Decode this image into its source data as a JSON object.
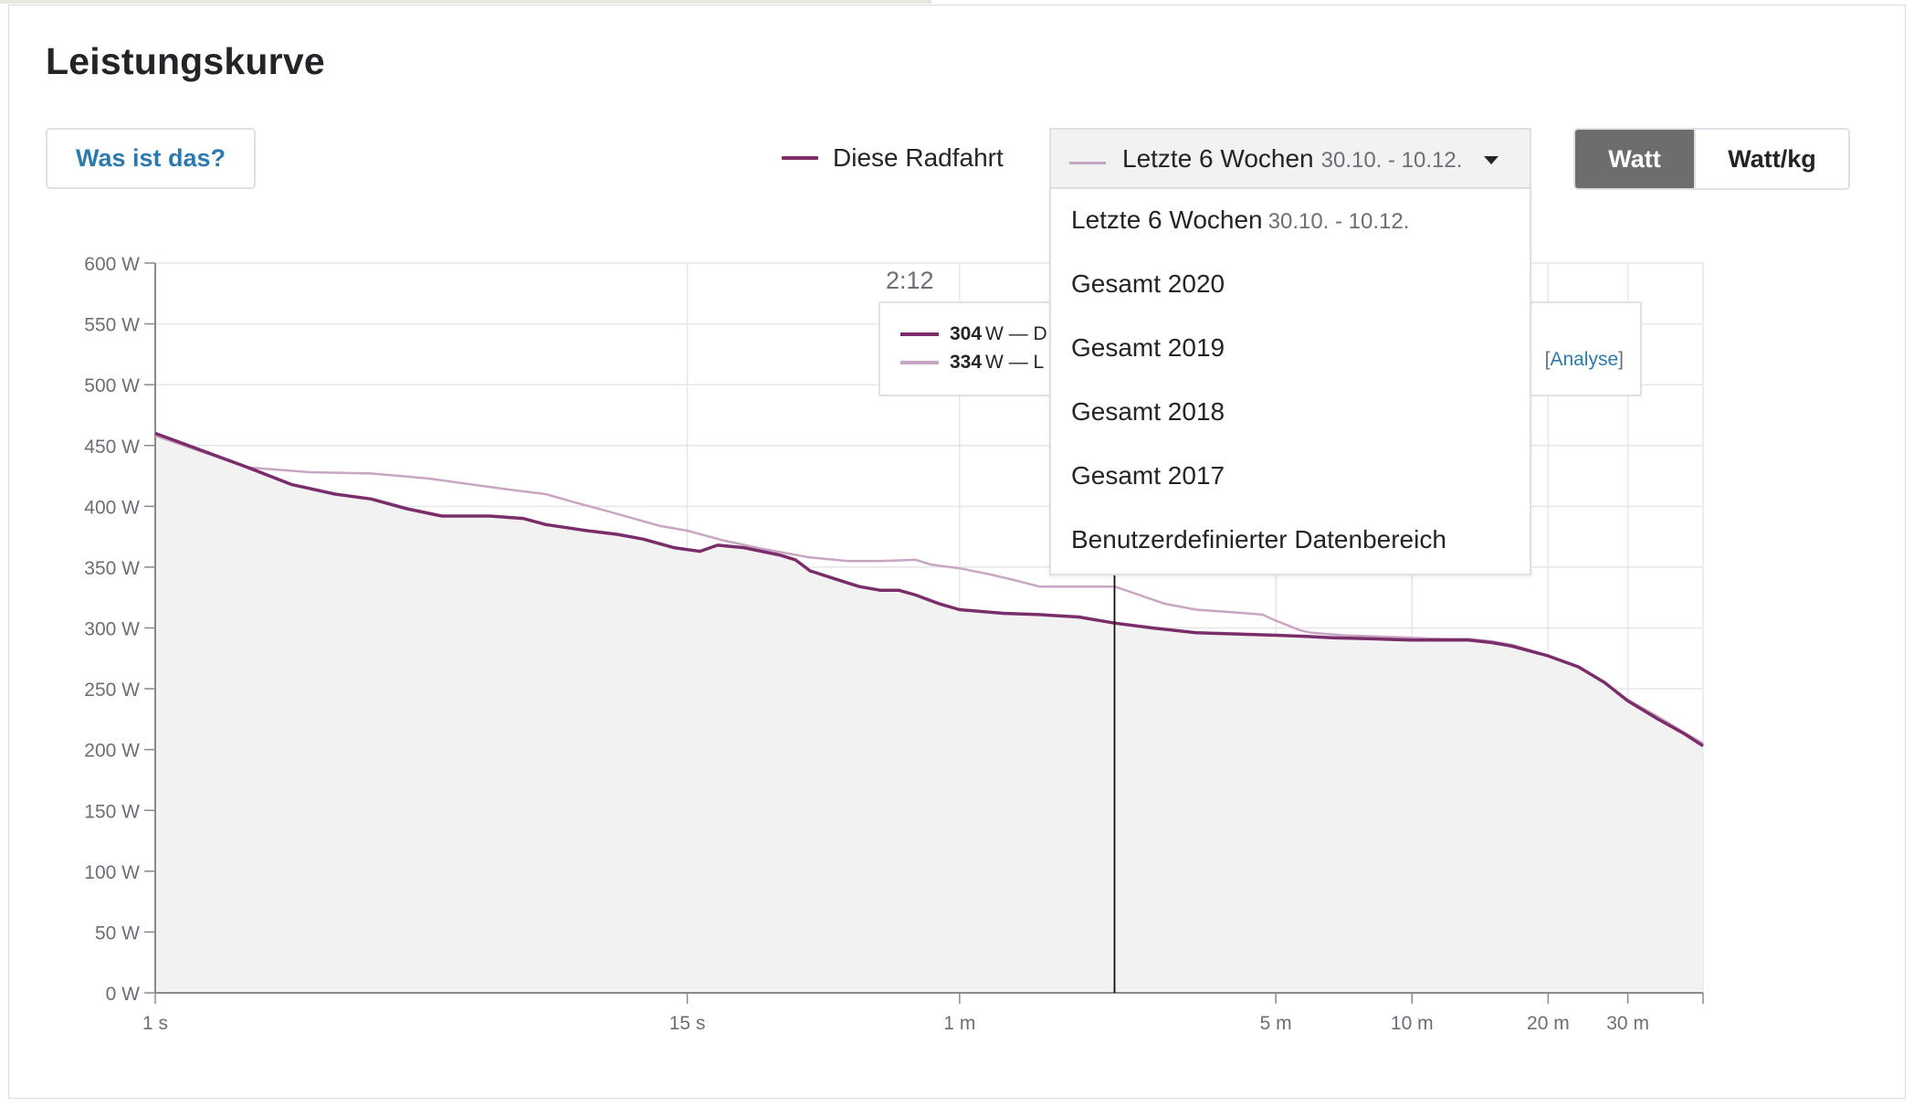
{
  "page": {
    "title": "Leistungskurve",
    "help_button": "Was ist das?"
  },
  "colors": {
    "this_ride": "#7b2d6b",
    "compare": "#c8a6c3",
    "link": "#2a7ab0",
    "toggle_active": "#6d6d6d",
    "area_fill": "#f2f2f2"
  },
  "legend": {
    "this_ride": "Diese Radfahrt"
  },
  "compare_select": {
    "selected_label": "Letzte 6 Wochen",
    "selected_dates": "30.10. - 10.12.",
    "icon": "caret-down-icon",
    "options": [
      {
        "label": "Letzte 6 Wochen",
        "dates": "30.10. - 10.12."
      },
      {
        "label": "Gesamt 2020",
        "dates": ""
      },
      {
        "label": "Gesamt 2019",
        "dates": ""
      },
      {
        "label": "Gesamt 2018",
        "dates": ""
      },
      {
        "label": "Gesamt 2017",
        "dates": ""
      },
      {
        "label": "Benutzerdefinierter Datenbereich",
        "dates": ""
      }
    ]
  },
  "unit_toggle": {
    "options": [
      "Watt",
      "Watt/kg"
    ],
    "active": "Watt"
  },
  "tooltip": {
    "time": "2:12",
    "rows": [
      {
        "value": "304",
        "unit": "W — D"
      },
      {
        "value": "334",
        "unit": "W — L"
      }
    ],
    "analyse_open": "[",
    "analyse_link": "Analyse",
    "analyse_close": "]"
  },
  "chart_data": {
    "type": "line",
    "title": "",
    "xlabel": "",
    "ylabel": "",
    "x_scale": "log",
    "x_unit": "seconds",
    "x_ticks": [
      {
        "value": 1,
        "label": "1 s"
      },
      {
        "value": 15,
        "label": "15 s"
      },
      {
        "value": 60,
        "label": "1 m"
      },
      {
        "value": 300,
        "label": "5 m"
      },
      {
        "value": 600,
        "label": "10 m"
      },
      {
        "value": 1200,
        "label": "20 m"
      },
      {
        "value": 1800,
        "label": "30 m"
      }
    ],
    "xlim": [
      1,
      2640
    ],
    "ylim": [
      0,
      600
    ],
    "y_ticks": [
      {
        "value": 0,
        "label": "0 W"
      },
      {
        "value": 50,
        "label": "50 W"
      },
      {
        "value": 100,
        "label": "100 W"
      },
      {
        "value": 150,
        "label": "150 W"
      },
      {
        "value": 200,
        "label": "200 W"
      },
      {
        "value": 250,
        "label": "250 W"
      },
      {
        "value": 300,
        "label": "300 W"
      },
      {
        "value": 350,
        "label": "350 W"
      },
      {
        "value": 400,
        "label": "400 W"
      },
      {
        "value": 450,
        "label": "450 W"
      },
      {
        "value": 500,
        "label": "500 W"
      },
      {
        "value": 550,
        "label": "550 W"
      },
      {
        "value": 600,
        "label": "600 W"
      }
    ],
    "grid": true,
    "crosshair_x": 132,
    "series": [
      {
        "name": "Diese Radfahrt",
        "points": [
          [
            1,
            460
          ],
          [
            1.6,
            432
          ],
          [
            2.0,
            418
          ],
          [
            2.5,
            410
          ],
          [
            3.0,
            406
          ],
          [
            3.6,
            398
          ],
          [
            4.3,
            392
          ],
          [
            5.5,
            392
          ],
          [
            6.5,
            390
          ],
          [
            7.3,
            385
          ],
          [
            9,
            380
          ],
          [
            10.5,
            377
          ],
          [
            12,
            373
          ],
          [
            14,
            366
          ],
          [
            16,
            363
          ],
          [
            17.5,
            368
          ],
          [
            20,
            366
          ],
          [
            24,
            360
          ],
          [
            26,
            356
          ],
          [
            28,
            347
          ],
          [
            32,
            340
          ],
          [
            36,
            334
          ],
          [
            40,
            331
          ],
          [
            44,
            331
          ],
          [
            48,
            327
          ],
          [
            54,
            320
          ],
          [
            60,
            315
          ],
          [
            75,
            312
          ],
          [
            90,
            311
          ],
          [
            110,
            309
          ],
          [
            132,
            304
          ],
          [
            160,
            300
          ],
          [
            200,
            296
          ],
          [
            250,
            295
          ],
          [
            300,
            294
          ],
          [
            350,
            293
          ],
          [
            400,
            292
          ],
          [
            500,
            291
          ],
          [
            600,
            290
          ],
          [
            700,
            290
          ],
          [
            800,
            290
          ],
          [
            900,
            288
          ],
          [
            1000,
            285
          ],
          [
            1200,
            277
          ],
          [
            1400,
            268
          ],
          [
            1600,
            255
          ],
          [
            1800,
            240
          ],
          [
            2100,
            225
          ],
          [
            2400,
            213
          ],
          [
            2640,
            203
          ]
        ]
      },
      {
        "name": "Letzte 6 Wochen",
        "points": [
          [
            1,
            458
          ],
          [
            1.6,
            432
          ],
          [
            2.2,
            428
          ],
          [
            3.0,
            427
          ],
          [
            4.0,
            423
          ],
          [
            5.0,
            418
          ],
          [
            6.0,
            414
          ],
          [
            7.3,
            410
          ],
          [
            8.5,
            403
          ],
          [
            10,
            396
          ],
          [
            13,
            384
          ],
          [
            15,
            380
          ],
          [
            18,
            372
          ],
          [
            22,
            365
          ],
          [
            28,
            358
          ],
          [
            34,
            355
          ],
          [
            40,
            355
          ],
          [
            48,
            356
          ],
          [
            52,
            352
          ],
          [
            60,
            349
          ],
          [
            70,
            344
          ],
          [
            80,
            339
          ],
          [
            90,
            334
          ],
          [
            110,
            334
          ],
          [
            132,
            334
          ],
          [
            150,
            327
          ],
          [
            170,
            320
          ],
          [
            200,
            315
          ],
          [
            240,
            313
          ],
          [
            280,
            311
          ],
          [
            300,
            306
          ],
          [
            340,
            298
          ],
          [
            360,
            296
          ],
          [
            420,
            294
          ],
          [
            500,
            293
          ],
          [
            600,
            292
          ],
          [
            700,
            291
          ],
          [
            800,
            291
          ],
          [
            900,
            289
          ],
          [
            1000,
            286
          ],
          [
            1200,
            277
          ],
          [
            1400,
            268
          ],
          [
            1600,
            255
          ],
          [
            1800,
            241
          ],
          [
            2100,
            227
          ],
          [
            2400,
            214
          ],
          [
            2640,
            205
          ]
        ]
      }
    ]
  }
}
